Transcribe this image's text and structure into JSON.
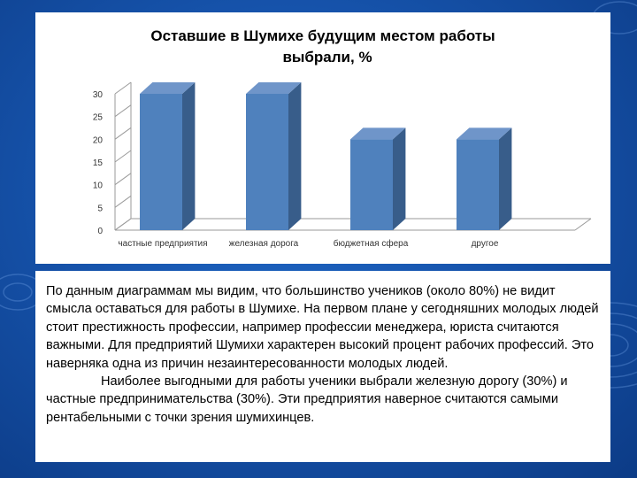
{
  "chart_data": {
    "type": "bar",
    "title_lines": [
      "Оставшие в Шумихе будущим местом работы",
      "выбрали, %"
    ],
    "categories": [
      "частные предприятия",
      "железная дорога",
      "бюджетная сфера",
      "другое"
    ],
    "values": [
      30,
      30,
      20,
      20
    ],
    "ylim": [
      0,
      30
    ],
    "yticks": [
      "0",
      "5",
      "10",
      "15",
      "20",
      "25",
      "30"
    ],
    "bar_color": "#4f81bd",
    "grid": false,
    "legend": "none"
  },
  "text": {
    "paragraph1": "По данным диаграммам мы видим, что большинство учеников (около 80%) не видит смысла оставаться для работы в Шумихе. На первом плане у сегодняшних молодых людей стоит престижность профессии, например профессии менеджера, юриста считаются важными. Для предприятий Шумихи характерен высокий процент рабочих профессий. Это наверняка одна из причин незаинтересованности молодых людей.",
    "paragraph2": "Наиболее выгодными для работы ученики выбрали железную дорогу (30%) и частные предпринимательства (30%). Эти предприятия наверное считаются самыми рентабельными с точки зрения шумихинцев."
  },
  "colors": {
    "background": "#1653ab",
    "bar_front": "#4f81bd",
    "bar_side": "#385d8a",
    "bar_top": "#6f95c9"
  }
}
